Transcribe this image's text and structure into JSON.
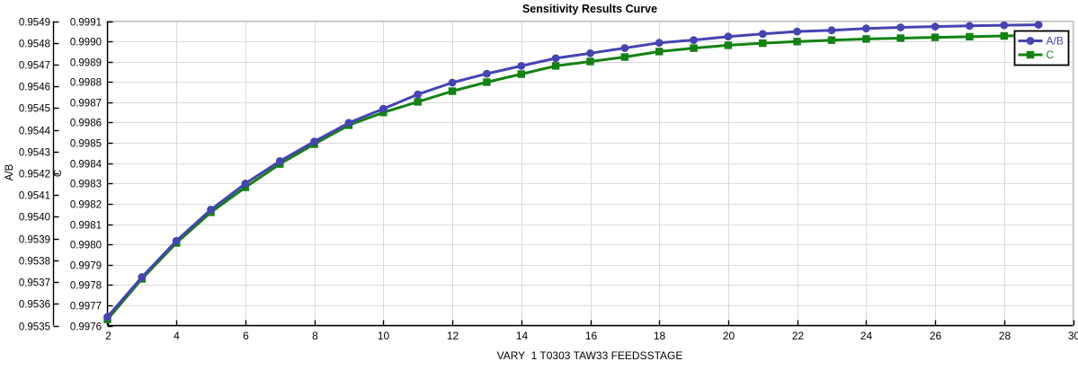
{
  "chart_data": {
    "type": "line",
    "title": "Sensitivity Results Curve",
    "xlabel": "VARY  1 T0303 TAW33 FEEDSSTAGE",
    "x": [
      2,
      3,
      4,
      5,
      6,
      7,
      8,
      9,
      10,
      11,
      12,
      13,
      14,
      15,
      16,
      17,
      18,
      19,
      20,
      21,
      22,
      23,
      24,
      25,
      26,
      27,
      28,
      29
    ],
    "series": [
      {
        "name": "A/B",
        "axis": "left",
        "color": "#4444b2",
        "marker": "circle",
        "values": [
          0.95354,
          0.953723,
          0.95389,
          0.954033,
          0.954153,
          0.954256,
          0.954346,
          0.954432,
          0.954497,
          0.954563,
          0.954617,
          0.954658,
          0.954694,
          0.954729,
          0.954752,
          0.954776,
          0.9548,
          0.954813,
          0.954829,
          0.954841,
          0.954852,
          0.954858,
          0.954866,
          0.954871,
          0.954875,
          0.954878,
          0.954881,
          0.954883
        ]
      },
      {
        "name": "C",
        "axis": "secondary",
        "color": "#128212",
        "marker": "square",
        "values": [
          0.99763,
          0.99783,
          0.998007,
          0.998158,
          0.998281,
          0.998396,
          0.998494,
          0.998587,
          0.99865,
          0.998702,
          0.998755,
          0.998799,
          0.998839,
          0.998879,
          0.998901,
          0.998923,
          0.99895,
          0.998967,
          0.998981,
          0.998991,
          0.998999,
          0.999006,
          0.999012,
          0.999016,
          0.99902,
          0.999023,
          0.999027,
          0.99903
        ]
      }
    ],
    "axes": {
      "x": {
        "min": 2,
        "max": 30,
        "tick_step": 2,
        "tick_labels": [
          "2",
          "4",
          "6",
          "8",
          "10",
          "12",
          "14",
          "16",
          "18",
          "20",
          "22",
          "24",
          "26",
          "28",
          "30"
        ]
      },
      "y_left": {
        "label": "A/B",
        "min": 0.9535,
        "max": 0.9549,
        "tick_step": 0.0001,
        "decimals": 4
      },
      "y_secondary": {
        "label": "C",
        "min": 0.9976,
        "max": 0.9991,
        "tick_step": 0.0001,
        "decimals": 4
      }
    },
    "legend": {
      "position": "top-right",
      "entries": [
        "A/B",
        "C"
      ]
    },
    "grid": true
  },
  "colors": {
    "background": "#ffffff",
    "grid": "#d9d9d9",
    "frame": "#bfbfbf",
    "axis": "#000000",
    "text": "#000000",
    "series_ab": "#4444b2",
    "series_c": "#128212",
    "legend_border": "#000000",
    "legend_background": "#ffffff"
  }
}
